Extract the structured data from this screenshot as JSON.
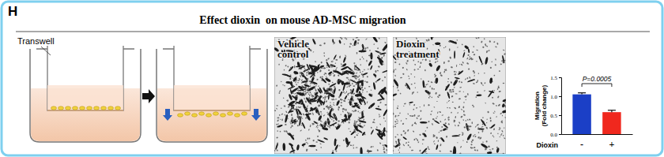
{
  "panel": {
    "label": "H",
    "title": "Effect dioxin  on mouse AD-MSC migration",
    "schematic_label": "Transwell",
    "images": [
      {
        "label": [
          "Vehicle",
          "control"
        ]
      },
      {
        "label": [
          "Dioxin",
          "treatment"
        ]
      }
    ]
  },
  "chart_data": {
    "type": "bar",
    "categories": [
      "-",
      "+"
    ],
    "values": [
      1.05,
      0.58
    ],
    "errors": [
      0.04,
      0.05
    ],
    "colors": [
      "#1b3fc6",
      "#f0281e"
    ],
    "ylim": [
      0,
      1.5
    ],
    "yticks": [
      {
        "value": 0,
        "label": "0.0"
      },
      {
        "value": 0.5,
        "label": "0.5"
      },
      {
        "value": 1,
        "label": "1.0"
      },
      {
        "value": 1.5,
        "label": "1.5"
      }
    ],
    "y_label": [
      "Migration",
      "(Fold change)"
    ],
    "x_label": "Dioxin",
    "annotation": "P=0.0005",
    "grid": false
  }
}
